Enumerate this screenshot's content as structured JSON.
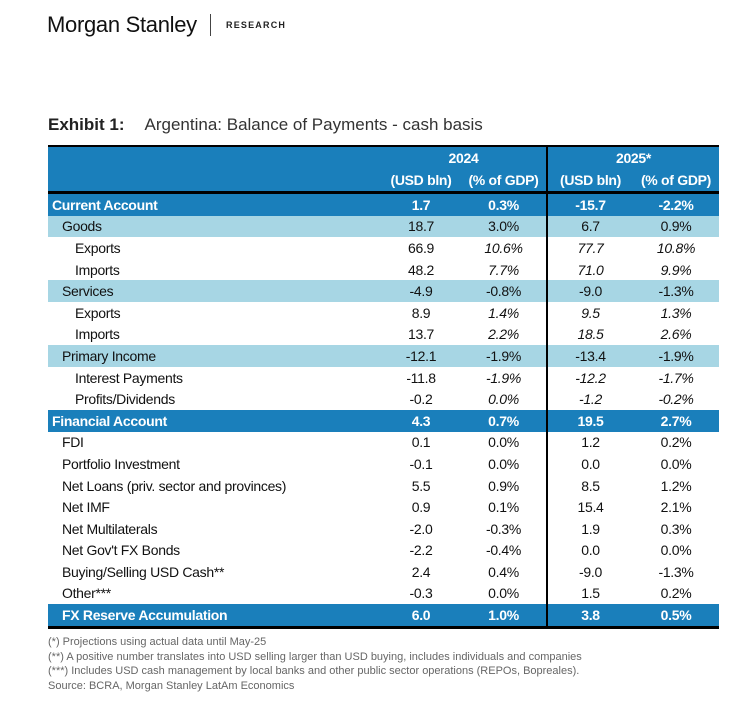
{
  "header": {
    "brand": "Morgan Stanley",
    "section": "RESEARCH"
  },
  "exhibit": {
    "label": "Exhibit 1:",
    "title": "Argentina: Balance of Payments - cash basis"
  },
  "table": {
    "years": [
      "2024",
      "2025*"
    ],
    "units": [
      "(USD bln)",
      "(% of GDP)",
      "(USD bln)",
      "(% of GDP)"
    ],
    "rows": [
      {
        "label": "Current Account",
        "type": "major",
        "level": 0,
        "values": [
          "1.7",
          "0.3%",
          "-15.7",
          "-2.2%"
        ]
      },
      {
        "label": "Goods",
        "type": "sub",
        "level": 1,
        "values": [
          "18.7",
          "3.0%",
          "6.7",
          "0.9%"
        ]
      },
      {
        "label": "Exports",
        "type": "plain",
        "level": 2,
        "values": [
          "66.9",
          "10.6%",
          "77.7",
          "10.8%"
        ]
      },
      {
        "label": "Imports",
        "type": "plain",
        "level": 2,
        "values": [
          "48.2",
          "7.7%",
          "71.0",
          "9.9%"
        ]
      },
      {
        "label": "Services",
        "type": "sub",
        "level": 1,
        "values": [
          "-4.9",
          "-0.8%",
          "-9.0",
          "-1.3%"
        ]
      },
      {
        "label": "Exports",
        "type": "plain",
        "level": 2,
        "values": [
          "8.9",
          "1.4%",
          "9.5",
          "1.3%"
        ]
      },
      {
        "label": "Imports",
        "type": "plain",
        "level": 2,
        "values": [
          "13.7",
          "2.2%",
          "18.5",
          "2.6%"
        ]
      },
      {
        "label": "Primary Income",
        "type": "sub",
        "level": 1,
        "values": [
          "-12.1",
          "-1.9%",
          "-13.4",
          "-1.9%"
        ]
      },
      {
        "label": "Interest Payments",
        "type": "plain",
        "level": 2,
        "values": [
          "-11.8",
          "-1.9%",
          "-12.2",
          "-1.7%"
        ]
      },
      {
        "label": "Profits/Dividends",
        "type": "plain",
        "level": 2,
        "values": [
          "-0.2",
          "0.0%",
          "-1.2",
          "-0.2%"
        ]
      },
      {
        "label": "Financial Account",
        "type": "major",
        "level": 0,
        "values": [
          "4.3",
          "0.7%",
          "19.5",
          "2.7%"
        ]
      },
      {
        "label": "FDI",
        "type": "plain",
        "level": 1,
        "values": [
          "0.1",
          "0.0%",
          "1.2",
          "0.2%"
        ]
      },
      {
        "label": "Portfolio Investment",
        "type": "plain",
        "level": 1,
        "values": [
          "-0.1",
          "0.0%",
          "0.0",
          "0.0%"
        ]
      },
      {
        "label": "Net Loans (priv. sector and provinces)",
        "type": "plain",
        "level": 1,
        "values": [
          "5.5",
          "0.9%",
          "8.5",
          "1.2%"
        ]
      },
      {
        "label": "Net IMF",
        "type": "plain",
        "level": 1,
        "values": [
          "0.9",
          "0.1%",
          "15.4",
          "2.1%"
        ]
      },
      {
        "label": "Net Multilaterals",
        "type": "plain",
        "level": 1,
        "values": [
          "-2.0",
          "-0.3%",
          "1.9",
          "0.3%"
        ]
      },
      {
        "label": "Net Gov't FX Bonds",
        "type": "plain",
        "level": 1,
        "values": [
          "-2.2",
          "-0.4%",
          "0.0",
          "0.0%"
        ]
      },
      {
        "label": "Buying/Selling USD Cash**",
        "type": "plain",
        "level": 1,
        "values": [
          "2.4",
          "0.4%",
          "-9.0",
          "-1.3%"
        ]
      },
      {
        "label": "Other***",
        "type": "plain",
        "level": 1,
        "values": [
          "-0.3",
          "0.0%",
          "1.5",
          "0.2%"
        ]
      },
      {
        "label": "FX Reserve Accumulation",
        "type": "major",
        "level": 1,
        "values": [
          "6.0",
          "1.0%",
          "3.8",
          "0.5%"
        ]
      }
    ]
  },
  "notes": [
    "(*) Projections using actual data until May-25",
    "(**) A positive number translates into USD selling larger than USD buying, includes individuals and companies",
    "(***) Includes USD cash management by local banks and other public sector operations (REPOs, Bopreales).",
    "Source: BCRA, Morgan Stanley LatAm Economics"
  ]
}
